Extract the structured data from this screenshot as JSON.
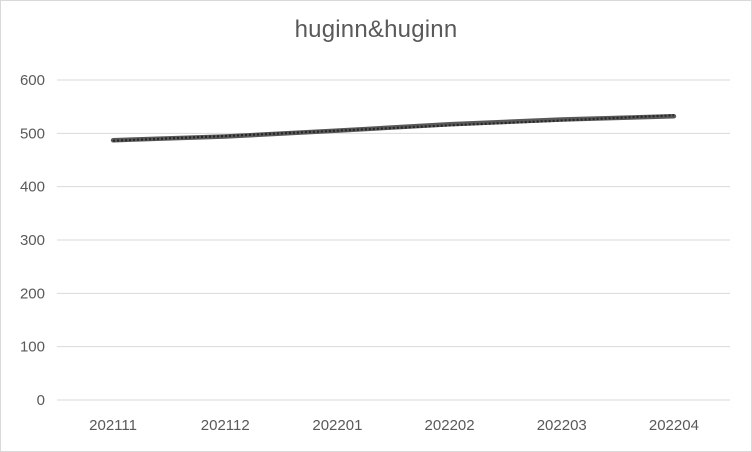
{
  "chart_data": {
    "type": "line",
    "title": "huginn&huginn",
    "xlabel": "",
    "ylabel": "",
    "categories": [
      "202111",
      "202112",
      "202201",
      "202202",
      "202203",
      "202204"
    ],
    "series": [
      {
        "values": [
          487,
          494,
          505,
          517,
          526,
          532
        ]
      }
    ],
    "trendline": {
      "style": "dotted",
      "values": [
        486,
        495,
        505,
        515,
        524,
        534
      ]
    },
    "ylim": [
      0,
      600
    ],
    "yticks": [
      0,
      100,
      200,
      300,
      400,
      500,
      600
    ],
    "grid": true,
    "legend": "none",
    "colors": {
      "series": "#595959",
      "trendline": "#262626",
      "grid": "#d9d9d9",
      "text": "#595959"
    }
  }
}
